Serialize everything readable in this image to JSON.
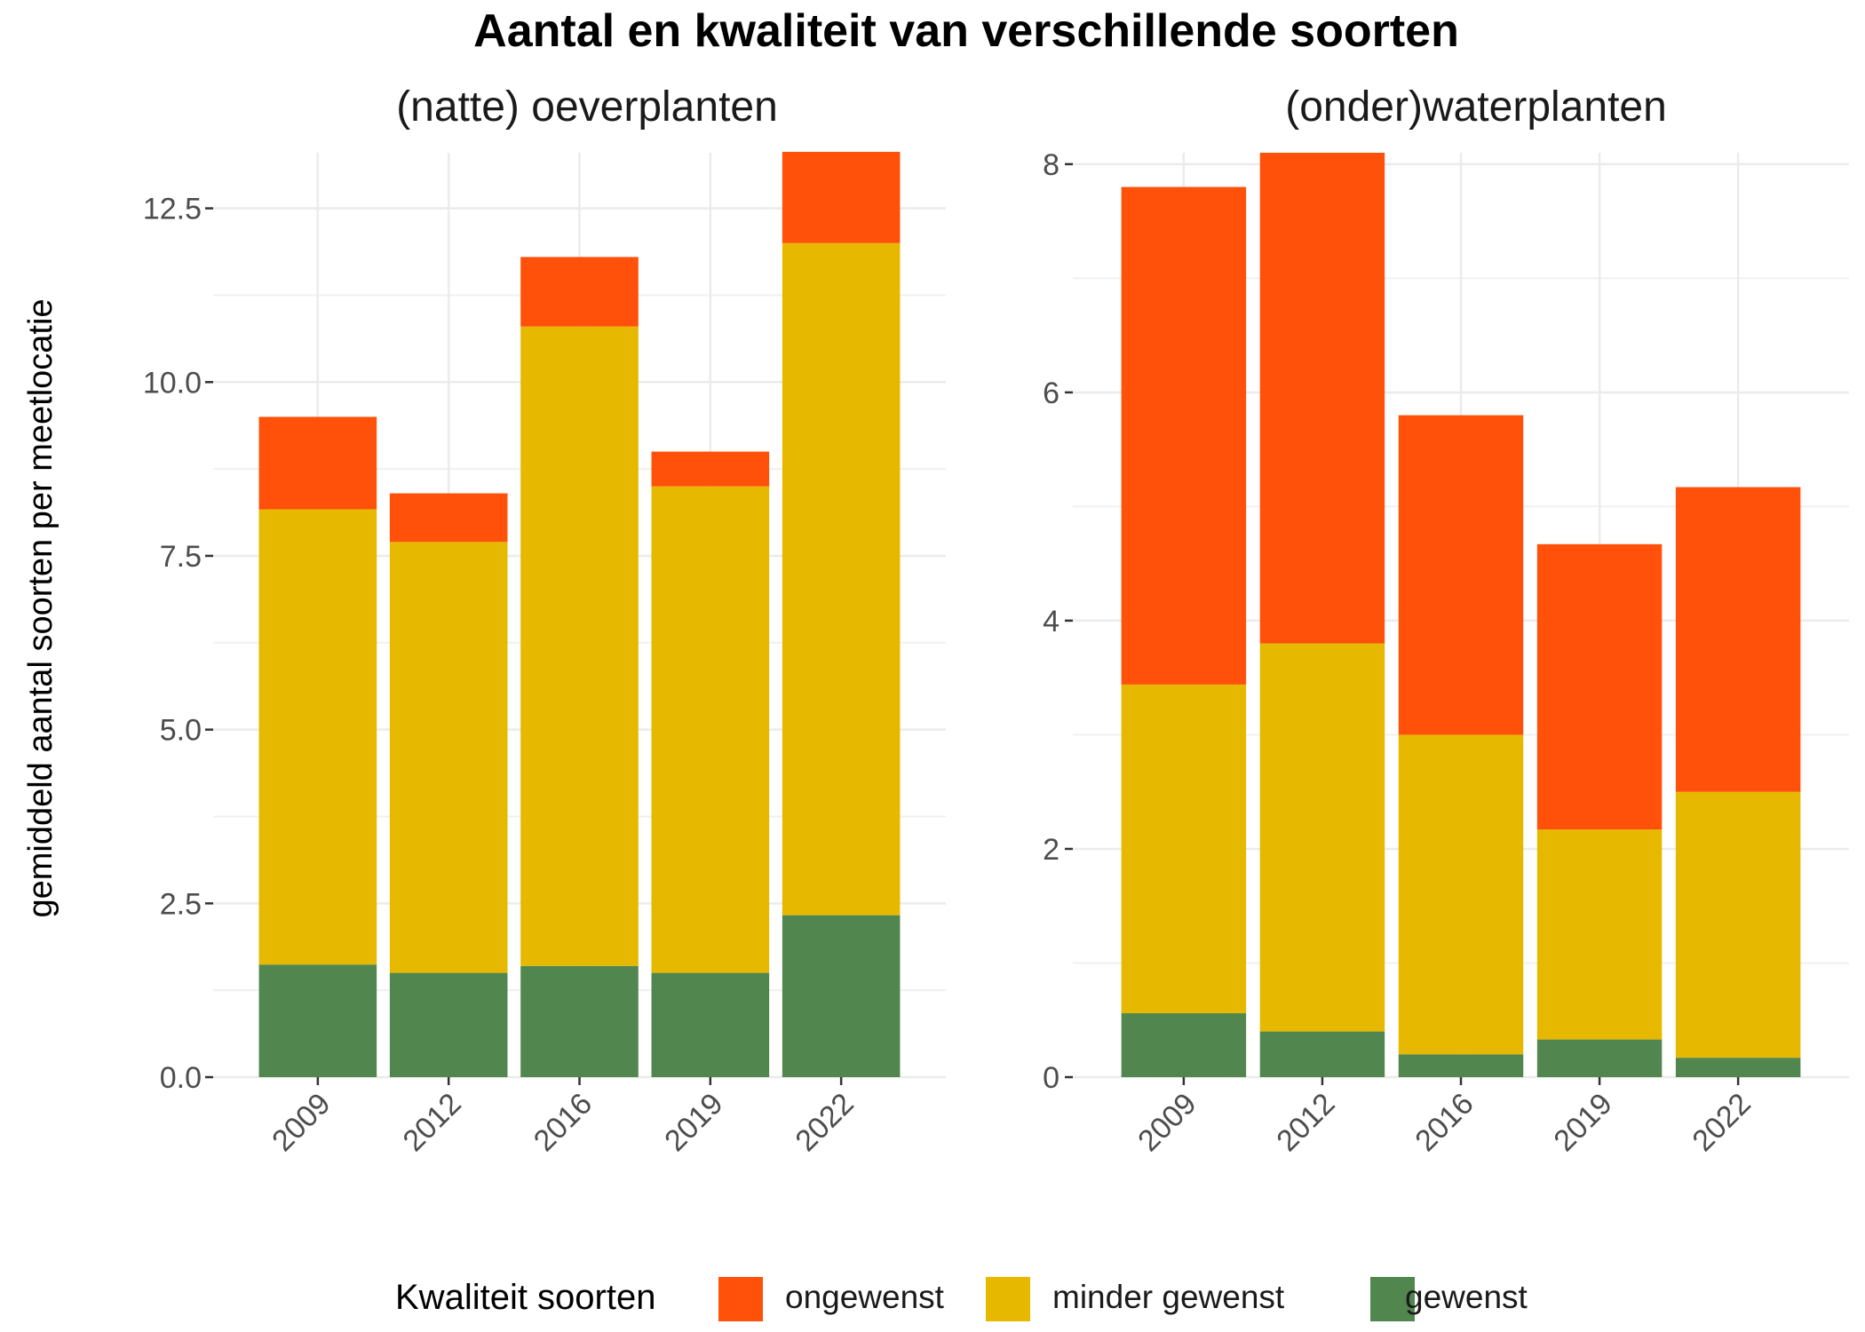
{
  "title": "Aantal en kwaliteit van verschillende soorten",
  "ylabel": "gemiddeld aantal soorten per meetlocatie",
  "legend": {
    "title": "Kwaliteit soorten",
    "entries": [
      {
        "key": "ongewenst",
        "label": "ongewenst",
        "color": "#FF510A"
      },
      {
        "key": "minder_gewenst",
        "label": "minder gewenst",
        "color": "#E6B800"
      },
      {
        "key": "gewenst",
        "label": "gewenst",
        "color": "#52864F"
      }
    ]
  },
  "chart_data": [
    {
      "type": "bar",
      "stacked": true,
      "title": "(natte) oeverplanten",
      "categories": [
        "2009",
        "2012",
        "2016",
        "2019",
        "2022"
      ],
      "ylim": [
        0,
        13.3
      ],
      "yticks": [
        0.0,
        2.5,
        5.0,
        7.5,
        10.0,
        12.5
      ],
      "ytick_labels": [
        "0.0",
        "2.5",
        "5.0",
        "7.5",
        "10.0",
        "12.5"
      ],
      "grid": true,
      "series": [
        {
          "name": "gewenst",
          "values": [
            1.62,
            1.5,
            1.6,
            1.5,
            2.33
          ]
        },
        {
          "name": "minder gewenst",
          "values": [
            6.55,
            6.2,
            9.2,
            7.0,
            9.67
          ]
        },
        {
          "name": "ongewenst",
          "values": [
            1.33,
            0.7,
            1.0,
            0.5,
            1.33
          ]
        }
      ]
    },
    {
      "type": "bar",
      "stacked": true,
      "title": "(onder)waterplanten",
      "categories": [
        "2009",
        "2012",
        "2016",
        "2019",
        "2022"
      ],
      "ylim": [
        0,
        8.1
      ],
      "yticks": [
        0,
        2,
        4,
        6,
        8
      ],
      "ytick_labels": [
        "0",
        "2",
        "4",
        "6",
        "8"
      ],
      "grid": true,
      "series": [
        {
          "name": "gewenst",
          "values": [
            0.56,
            0.4,
            0.2,
            0.33,
            0.17
          ]
        },
        {
          "name": "minder gewenst",
          "values": [
            2.88,
            3.4,
            2.8,
            1.84,
            2.33
          ]
        },
        {
          "name": "ongewenst",
          "values": [
            4.36,
            4.3,
            2.8,
            2.5,
            2.67
          ]
        }
      ]
    }
  ]
}
